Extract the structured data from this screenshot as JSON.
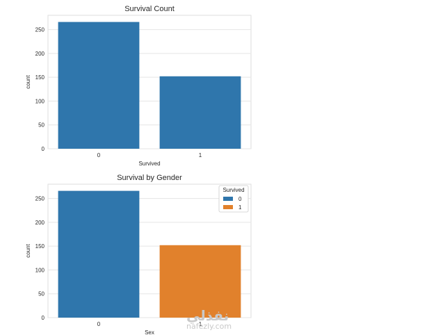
{
  "chart_data": [
    {
      "type": "bar",
      "title": "Survival Count",
      "xlabel": "Survived",
      "ylabel": "count",
      "categories": [
        "0",
        "1"
      ],
      "values": [
        266,
        152
      ],
      "ylim": [
        0,
        280
      ],
      "yticks": [
        0,
        50,
        100,
        150,
        200,
        250
      ],
      "grid": true,
      "colors": [
        "#2f76ac"
      ]
    },
    {
      "type": "bar",
      "title": "Survival by Gender",
      "xlabel": "Sex",
      "ylabel": "count",
      "categories": [
        "0",
        "1"
      ],
      "series": [
        {
          "name": "0",
          "values": [
            266,
            null
          ],
          "color": "#2f76ac"
        },
        {
          "name": "1",
          "values": [
            null,
            152
          ],
          "color": "#e1812c"
        }
      ],
      "ylim": [
        0,
        280
      ],
      "yticks": [
        0,
        50,
        100,
        150,
        200,
        250
      ],
      "grid": true,
      "legend": {
        "title": "Survived",
        "placement": "top-right"
      }
    }
  ],
  "watermark": {
    "arabic": "نفذلي",
    "latin": "nafezly.com"
  }
}
